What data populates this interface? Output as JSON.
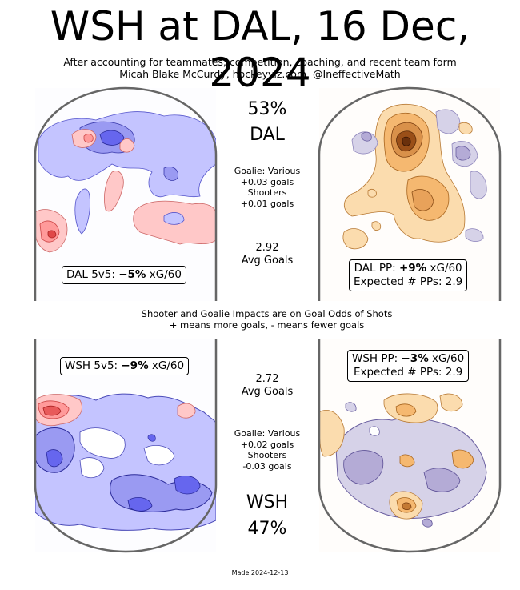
{
  "title": "WSH at DAL, 16 Dec, 2024",
  "subtitle_line1": "After accounting for teammates, competition, coaching, and recent team form",
  "subtitle_line2": "Micah Blake McCurdy, hockeyviz.com, @IneffectiveMath",
  "home": {
    "team": "DAL",
    "win_pct": "53%",
    "goalie_lines": [
      "Goalie: Various",
      "+0.03 goals",
      "Shooters",
      "+0.01 goals"
    ],
    "avg_goals_value": "2.92",
    "avg_goals_label": "Avg Goals",
    "ev_label_prefix": "DAL 5v5: ",
    "ev_value": "−5%",
    "ev_label_suffix": " xG/60",
    "pp_label_prefix": "DAL PP: ",
    "pp_value": "+9%",
    "pp_label_suffix": " xG/60",
    "pp_expected": "Expected # PPs: 2.9"
  },
  "away": {
    "team": "WSH",
    "win_pct": "47%",
    "goalie_lines": [
      "Goalie: Various",
      "+0.02 goals",
      "Shooters",
      "-0.03 goals"
    ],
    "avg_goals_value": "2.72",
    "avg_goals_label": "Avg Goals",
    "ev_label_prefix": "WSH 5v5: ",
    "ev_value": "−9%",
    "ev_label_suffix": " xG/60",
    "pp_label_prefix": "WSH PP: ",
    "pp_value": "−3%",
    "pp_label_suffix": " xG/60",
    "pp_expected": "Expected # PPs: 2.9"
  },
  "note_line1": "Shooter and Goalie Impacts are on Goal Odds of Shots",
  "note_line2": "+ means more goals, - means fewer goals",
  "footer": "Made 2024-12-13",
  "colors": {
    "ev_more": "#ff9a9a",
    "ev_more_dark": "#e04848",
    "ev_fewer": "#b8b8ff",
    "ev_fewer_dark": "#4a4ae8",
    "pp_more": "#f8c888",
    "pp_more_dark": "#9a4a10",
    "pp_fewer": "#cfcbe4",
    "pp_fewer_dark": "#8f86bc",
    "rink_border": "#666666"
  },
  "chart_data": [
    {
      "type": "heatmap",
      "name": "DAL 5v5",
      "value": "−5%",
      "units": "xG/60",
      "palette": "red-more blue-fewer"
    },
    {
      "type": "heatmap",
      "name": "DAL PP",
      "value": "+9%",
      "units": "xG/60",
      "expected_pps": 2.9,
      "palette": "orange-more purple-fewer"
    },
    {
      "type": "heatmap",
      "name": "WSH 5v5",
      "value": "−9%",
      "units": "xG/60",
      "palette": "red-more blue-fewer"
    },
    {
      "type": "heatmap",
      "name": "WSH PP",
      "value": "−3%",
      "units": "xG/60",
      "expected_pps": 2.9,
      "palette": "orange-more purple-fewer"
    }
  ]
}
